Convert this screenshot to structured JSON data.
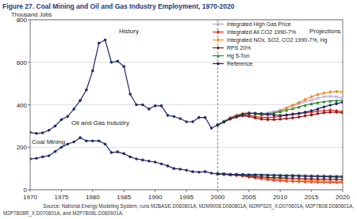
{
  "chart_data": {
    "type": "line",
    "title": "Figure 27.  Coal Mining and Oil and Gas Industry Employment, 1970-2020",
    "y_label": "Thousand Jobs",
    "annotations": [
      "History",
      "Projections",
      "Oil and Gas Industry",
      "Coal Mining"
    ],
    "source": [
      "Source: National Energy Modeling System, runs M2BASE.D060801A, M2M9008.D060801A, M2RPS20_X.D070601A, M2P7B08.D080601A,",
      "M2P7B08R_X.D070601A, and M2P7B08L.D060901A."
    ],
    "divider": 2000,
    "x": [
      1970,
      1971,
      1972,
      1973,
      1974,
      1975,
      1976,
      1977,
      1978,
      1979,
      1980,
      1981,
      1982,
      1983,
      1984,
      1985,
      1986,
      1987,
      1988,
      1989,
      1990,
      1991,
      1992,
      1993,
      1994,
      1995,
      1996,
      1997,
      1998,
      1999,
      2000,
      2001,
      2002,
      2003,
      2004,
      2005,
      2006,
      2007,
      2008,
      2009,
      2010,
      2011,
      2012,
      2013,
      2014,
      2015,
      2016,
      2017,
      2018,
      2019,
      2020
    ],
    "xlim": [
      1970,
      2020
    ],
    "xticks": [
      1970,
      1975,
      1980,
      1985,
      1990,
      1995,
      2000,
      2005,
      2010,
      2015,
      2020
    ],
    "ylim": [
      0,
      800
    ],
    "yticks": [
      0,
      200,
      400,
      600,
      800
    ],
    "grid": true,
    "legend": "top-right",
    "series": [
      {
        "name": "Integrated High Gas Price",
        "color": "#b3a3e0",
        "marker": "x",
        "values": [
          null,
          null,
          null,
          null,
          null,
          null,
          null,
          null,
          null,
          null,
          null,
          null,
          null,
          null,
          null,
          null,
          null,
          null,
          null,
          null,
          null,
          null,
          null,
          null,
          null,
          null,
          null,
          null,
          null,
          null,
          305,
          322,
          340,
          352,
          360,
          362,
          360,
          358,
          362,
          368,
          375,
          385,
          395,
          405,
          415,
          422,
          430,
          438,
          440,
          438,
          432
        ]
      },
      {
        "name": "Integrated All CO2 1990-7%",
        "color": "#e3231c",
        "marker": "diamond",
        "values": [
          null,
          null,
          null,
          null,
          null,
          null,
          null,
          null,
          null,
          null,
          null,
          null,
          null,
          null,
          null,
          null,
          null,
          null,
          null,
          null,
          null,
          null,
          null,
          null,
          null,
          null,
          null,
          null,
          null,
          null,
          305,
          320,
          335,
          345,
          352,
          350,
          345,
          340,
          340,
          342,
          345,
          350,
          355,
          358,
          362,
          365,
          370,
          372,
          375,
          372,
          368
        ]
      },
      {
        "name": "Integrated NOx, SO2, CO2 1990-7%, Hg",
        "color": "#f28a1e",
        "marker": "diamond",
        "values": [
          null,
          null,
          null,
          null,
          null,
          null,
          null,
          null,
          null,
          null,
          null,
          null,
          null,
          null,
          null,
          null,
          null,
          null,
          null,
          null,
          null,
          null,
          null,
          null,
          null,
          null,
          null,
          null,
          null,
          null,
          305,
          322,
          338,
          350,
          358,
          362,
          358,
          350,
          352,
          360,
          372,
          385,
          398,
          410,
          425,
          438,
          448,
          455,
          460,
          462,
          460
        ]
      },
      {
        "name": "RPS 20%",
        "color": "#8c1c1c",
        "marker": "circle",
        "values": [
          null,
          null,
          null,
          null,
          null,
          null,
          null,
          null,
          null,
          null,
          null,
          null,
          null,
          null,
          null,
          null,
          null,
          null,
          null,
          null,
          null,
          null,
          null,
          null,
          null,
          null,
          null,
          null,
          null,
          null,
          305,
          318,
          332,
          342,
          348,
          345,
          338,
          332,
          330,
          330,
          332,
          335,
          338,
          342,
          348,
          352,
          358,
          362,
          365,
          365,
          362
        ]
      },
      {
        "name": "Hg 5-Ton",
        "color": "#2e8b2e",
        "marker": "triangle",
        "values": [
          null,
          null,
          null,
          null,
          null,
          null,
          null,
          null,
          null,
          null,
          null,
          null,
          null,
          null,
          null,
          null,
          null,
          null,
          null,
          null,
          null,
          null,
          null,
          null,
          null,
          null,
          null,
          null,
          null,
          null,
          305,
          320,
          336,
          348,
          356,
          360,
          358,
          355,
          358,
          362,
          368,
          375,
          382,
          390,
          398,
          405,
          410,
          415,
          418,
          420,
          420
        ]
      },
      {
        "name": "Reference",
        "color": "#1f2a6b",
        "marker": "circle",
        "values": [
          270,
          265,
          268,
          280,
          300,
          330,
          345,
          380,
          420,
          470,
          560,
          690,
          705,
          600,
          605,
          580,
          450,
          400,
          400,
          380,
          395,
          395,
          350,
          345,
          335,
          320,
          320,
          340,
          340,
          290,
          305,
          320,
          335,
          345,
          355,
          360,
          360,
          358,
          355,
          352,
          350,
          352,
          356,
          360,
          365,
          372,
          380,
          390,
          398,
          405,
          412
        ]
      },
      {
        "name": "Integrated High Gas Price",
        "color": "#b3a3e0",
        "marker": "x",
        "values": [
          null,
          null,
          null,
          null,
          null,
          null,
          null,
          null,
          null,
          null,
          null,
          null,
          null,
          null,
          null,
          null,
          null,
          null,
          null,
          null,
          null,
          null,
          null,
          null,
          null,
          null,
          null,
          null,
          null,
          null,
          75,
          74,
          73,
          72,
          72,
          71,
          71,
          70,
          70,
          69,
          69,
          68,
          68,
          67,
          67,
          66,
          66,
          66,
          65,
          65,
          65
        ]
      },
      {
        "name": "Integrated All CO2 1990-7%",
        "color": "#e3231c",
        "marker": "diamond",
        "values": [
          null,
          null,
          null,
          null,
          null,
          null,
          null,
          null,
          null,
          null,
          null,
          null,
          null,
          null,
          null,
          null,
          null,
          null,
          null,
          null,
          null,
          null,
          null,
          null,
          null,
          null,
          null,
          null,
          null,
          null,
          75,
          73,
          70,
          68,
          65,
          60,
          56,
          52,
          48,
          45,
          43,
          41,
          40,
          39,
          38,
          37,
          36,
          36,
          35,
          35,
          35
        ]
      },
      {
        "name": "Integrated NOx, SO2, CO2 1990-7%, Hg",
        "color": "#f28a1e",
        "marker": "diamond",
        "values": [
          null,
          null,
          null,
          null,
          null,
          null,
          null,
          null,
          null,
          null,
          null,
          null,
          null,
          null,
          null,
          null,
          null,
          null,
          null,
          null,
          null,
          null,
          null,
          null,
          null,
          null,
          null,
          null,
          null,
          null,
          75,
          73,
          71,
          70,
          68,
          65,
          62,
          58,
          55,
          52,
          50,
          48,
          46,
          45,
          44,
          43,
          42,
          41,
          40,
          40,
          40
        ]
      },
      {
        "name": "RPS 20%",
        "color": "#8c1c1c",
        "marker": "circle",
        "values": [
          null,
          null,
          null,
          null,
          null,
          null,
          null,
          null,
          null,
          null,
          null,
          null,
          null,
          null,
          null,
          null,
          null,
          null,
          null,
          null,
          null,
          null,
          null,
          null,
          null,
          null,
          null,
          null,
          null,
          null,
          75,
          73,
          71,
          69,
          67,
          64,
          62,
          60,
          58,
          57,
          56,
          55,
          54,
          53,
          52,
          51,
          50,
          50,
          49,
          49,
          48
        ]
      },
      {
        "name": "Hg 5-Ton",
        "color": "#2e8b2e",
        "marker": "triangle",
        "values": [
          null,
          null,
          null,
          null,
          null,
          null,
          null,
          null,
          null,
          null,
          null,
          null,
          null,
          null,
          null,
          null,
          null,
          null,
          null,
          null,
          null,
          null,
          null,
          null,
          null,
          null,
          null,
          null,
          null,
          null,
          75,
          74,
          72,
          72,
          71,
          70,
          70,
          70,
          69,
          69,
          68,
          68,
          67,
          67,
          66,
          66,
          65,
          65,
          64,
          64,
          64
        ]
      },
      {
        "name": "Reference",
        "color": "#1f2a6b",
        "marker": "circle",
        "values": [
          145,
          148,
          155,
          160,
          180,
          200,
          215,
          225,
          245,
          230,
          230,
          230,
          215,
          175,
          178,
          170,
          155,
          145,
          140,
          135,
          130,
          122,
          112,
          100,
          97,
          92,
          85,
          83,
          85,
          78,
          75,
          74,
          72,
          72,
          71,
          70,
          70,
          69,
          68,
          68,
          67,
          66,
          66,
          65,
          64,
          63,
          63,
          62,
          61,
          60,
          60
        ]
      }
    ]
  }
}
